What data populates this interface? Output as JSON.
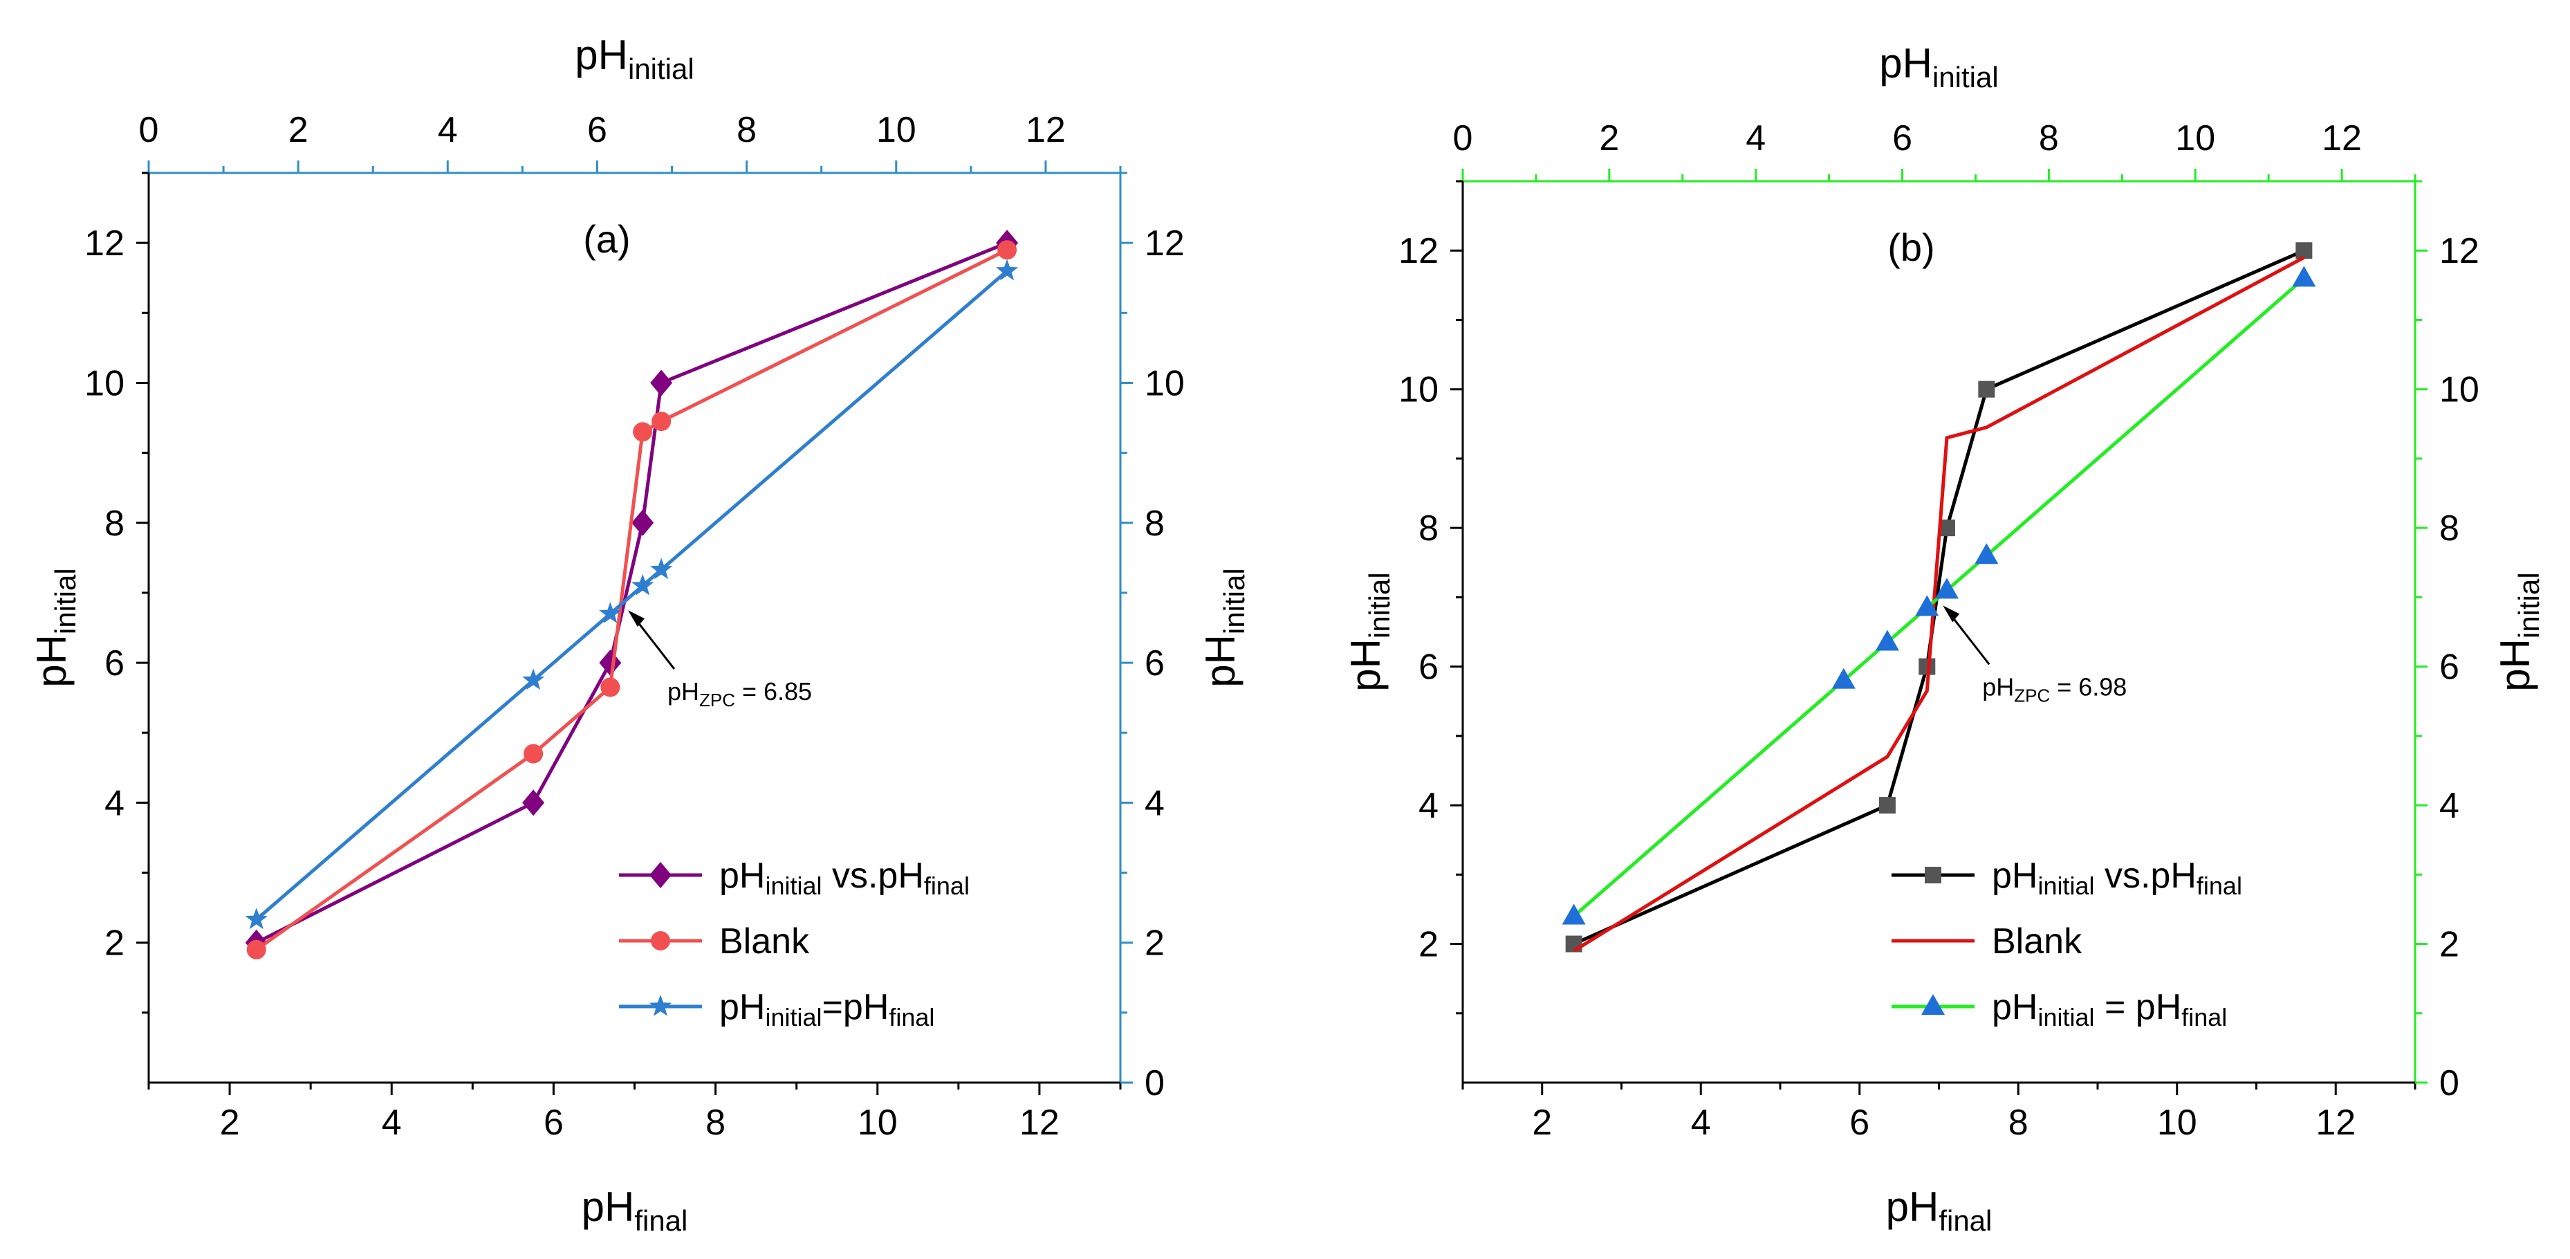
{
  "chart_data": [
    {
      "type": "line",
      "panel_label": "(a)",
      "colors": {
        "axis_right_top": "#2f8fc7",
        "axis_left_bottom": "#000000"
      },
      "top_axis": {
        "title": "pH",
        "title_sub": "initial",
        "ticks": [
          0,
          2,
          4,
          6,
          8,
          10,
          12
        ],
        "range": [
          0,
          13
        ]
      },
      "bottom_axis": {
        "title": "pH",
        "title_sub": "final",
        "ticks": [
          2,
          4,
          6,
          8,
          10,
          12
        ],
        "range": [
          1,
          13
        ]
      },
      "left_axis": {
        "title": "pH",
        "title_sub": "initial",
        "ticks": [
          2,
          4,
          6,
          8,
          10,
          12
        ],
        "range": [
          0,
          13
        ]
      },
      "right_axis": {
        "title": "pH",
        "title_sub": "initial",
        "ticks": [
          0,
          2,
          4,
          6,
          8,
          10,
          12
        ],
        "range": [
          0,
          13
        ]
      },
      "series": [
        {
          "name": "pHinitial vs.pHfinal",
          "label_parts": [
            "pH",
            "initial",
            " vs.pH",
            "final"
          ],
          "color": "#800080",
          "marker": "diamond",
          "x": [
            2.33,
            5.75,
            6.7,
            7.1,
            7.33,
            11.6
          ],
          "y": [
            2,
            4,
            6,
            8,
            10,
            12
          ]
        },
        {
          "name": "Blank",
          "label_parts": [
            "Blank"
          ],
          "color": "#f25050",
          "marker": "circle",
          "x": [
            2.33,
            5.75,
            6.7,
            7.1,
            7.33,
            11.6
          ],
          "y": [
            1.9,
            4.7,
            5.65,
            9.3,
            9.45,
            11.9
          ]
        },
        {
          "name": "pHinitial=pHfinal",
          "label_parts": [
            "pH",
            "initial",
            "=pH",
            "final"
          ],
          "color": "#2f7fd0",
          "marker": "star",
          "x": [
            2.33,
            5.75,
            6.7,
            7.1,
            7.33,
            11.6
          ],
          "y": [
            2.33,
            5.75,
            6.7,
            7.1,
            7.33,
            11.6
          ]
        }
      ],
      "annotation": {
        "prefix": "pH",
        "sub": "ZPC",
        "suffix": " = 6.85",
        "point": [
          6.85,
          6.85
        ]
      }
    },
    {
      "type": "line",
      "panel_label": "(b)",
      "colors": {
        "axis_right_top": "#22ee22",
        "axis_left_bottom": "#000000"
      },
      "top_axis": {
        "title": "pH",
        "title_sub": "initial",
        "ticks": [
          0,
          2,
          4,
          6,
          8,
          10,
          12
        ],
        "range": [
          0,
          13
        ]
      },
      "bottom_axis": {
        "title": "pH",
        "title_sub": "final",
        "ticks": [
          2,
          4,
          6,
          8,
          10,
          12
        ],
        "range": [
          1,
          13
        ]
      },
      "left_axis": {
        "title": "pH",
        "title_sub": "initial",
        "ticks": [
          2,
          4,
          6,
          8,
          10,
          12
        ],
        "range": [
          0,
          13
        ]
      },
      "right_axis": {
        "title": "pH",
        "title_sub": "initial",
        "ticks": [
          0,
          2,
          4,
          6,
          8,
          10,
          12
        ],
        "range": [
          0,
          13
        ]
      },
      "series": [
        {
          "name": "pHinitial vs.pHfinal",
          "label_parts": [
            "pH",
            "initial",
            " vs.pH",
            "final"
          ],
          "color": "#000000",
          "marker": "square",
          "marker_color": "#555555",
          "x": [
            2.4,
            6.35,
            6.85,
            7.1,
            7.6,
            11.6
          ],
          "y": [
            2,
            4,
            6,
            8,
            10,
            12
          ]
        },
        {
          "name": "Blank",
          "label_parts": [
            "Blank"
          ],
          "color": "#e01010",
          "marker": "none",
          "x": [
            2.4,
            6.35,
            6.85,
            7.1,
            7.6,
            11.6
          ],
          "y": [
            1.9,
            4.7,
            5.65,
            9.3,
            9.45,
            11.9
          ]
        },
        {
          "name": "pHinitial = pHfinal",
          "label_parts": [
            "pH",
            "initial",
            " = pH",
            "final"
          ],
          "color": "#22ee22",
          "marker": "triangle",
          "marker_color": "#1e6fd8",
          "x": [
            2.4,
            5.8,
            6.35,
            6.85,
            7.1,
            7.6,
            11.6
          ],
          "y": [
            2.4,
            5.8,
            6.35,
            6.85,
            7.1,
            7.6,
            11.6
          ]
        }
      ],
      "annotation": {
        "prefix": "pH",
        "sub": "ZPC",
        "suffix": " = 6.98",
        "point": [
          6.98,
          6.98
        ]
      }
    }
  ]
}
